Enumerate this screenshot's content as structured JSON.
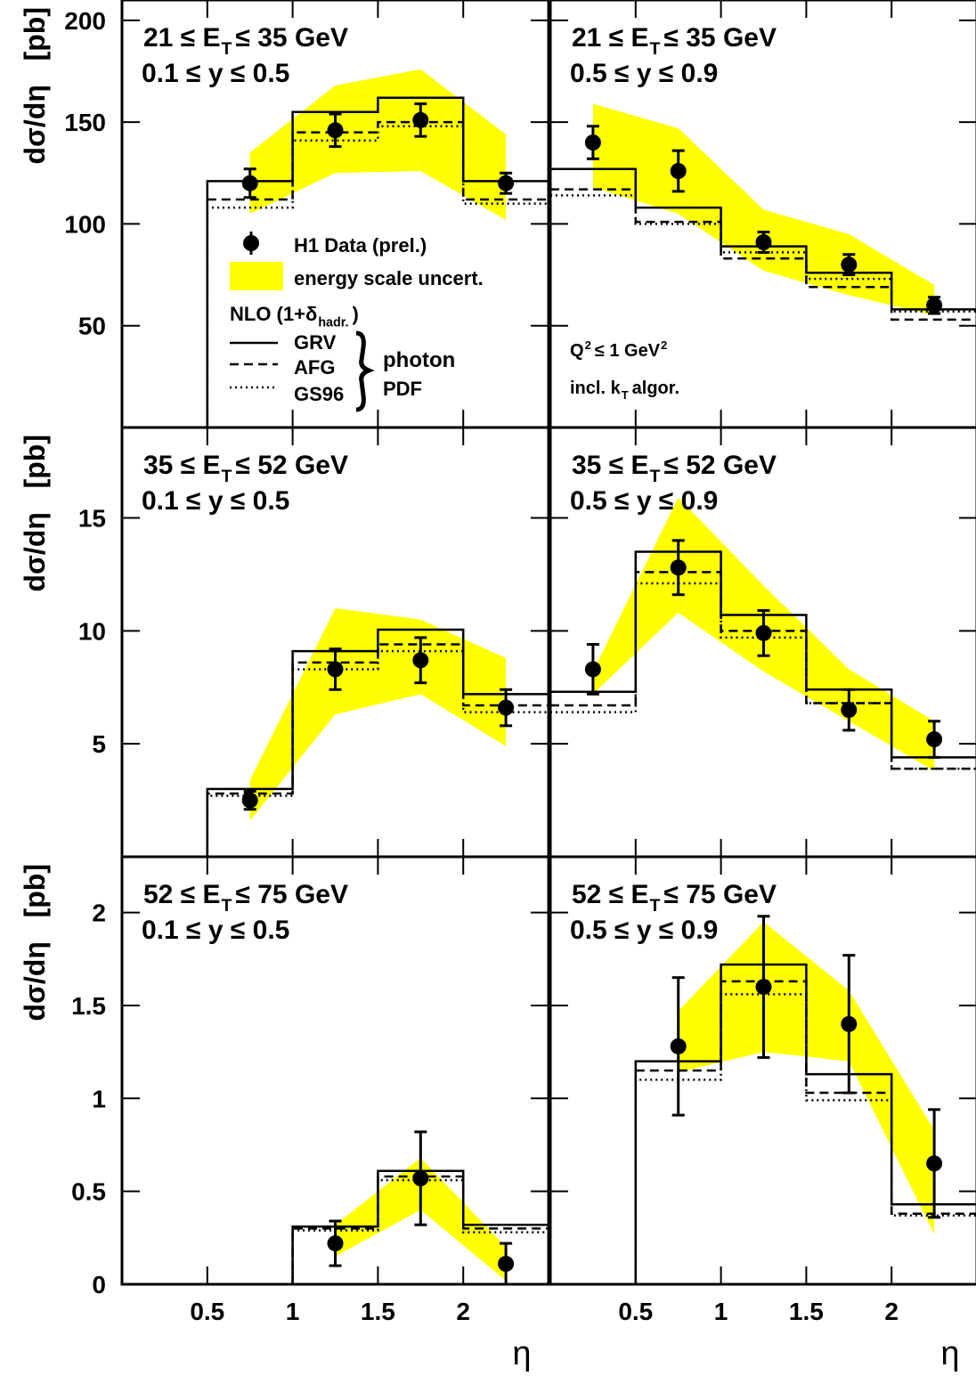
{
  "chart_data": [
    {
      "type": "histogram",
      "title_parts": [
        "21 ≤ E",
        "T",
        "≤ 35 GeV"
      ],
      "subtitle": "0.1 ≤ y ≤ 0.5",
      "y_label": "dσ/dη   [pb]",
      "xlim": [
        0,
        2.5
      ],
      "ylim": [
        0,
        210
      ],
      "yticks": [
        50,
        100,
        150,
        200
      ],
      "bins": [
        0,
        0.5,
        1,
        1.5,
        2,
        2.5
      ],
      "series": [
        {
          "name": "GRV",
          "style": "solid",
          "color": "#000000",
          "values": [
            null,
            121,
            155,
            162,
            121
          ]
        },
        {
          "name": "AFG",
          "style": "dashed",
          "color": "#000000",
          "values": [
            null,
            112,
            145,
            150,
            112
          ]
        },
        {
          "name": "GS96",
          "style": "dotted",
          "color": "#000000",
          "values": [
            null,
            108,
            141,
            148,
            110
          ]
        }
      ],
      "points": {
        "name": "H1 Data (prel.)",
        "color": "#000000",
        "x": [
          0.75,
          1.25,
          1.75,
          2.25
        ],
        "values": [
          120,
          146,
          151,
          120
        ],
        "errors": [
          7,
          8,
          8,
          5
        ]
      },
      "band": {
        "name": "energy scale uncert.",
        "color": "#ffff00",
        "x": [
          0.75,
          1.25,
          1.75,
          2.25
        ],
        "lower": [
          105,
          125,
          126,
          102
        ],
        "upper": [
          135,
          168,
          176,
          144
        ]
      },
      "nlo_label": [
        "NLO (1+δ",
        "hadr.",
        ")"
      ],
      "pdf_label": [
        "photon",
        "PDF"
      ]
    },
    {
      "type": "histogram",
      "title_parts": [
        "21 ≤ E",
        "T",
        "≤ 35 GeV"
      ],
      "subtitle": "0.5 ≤ y ≤ 0.9",
      "xlim": [
        0,
        2.5
      ],
      "ylim": [
        0,
        210
      ],
      "bins": [
        0,
        0.5,
        1,
        1.5,
        2,
        2.5
      ],
      "series": [
        {
          "style": "solid",
          "color": "#000000",
          "values": [
            127,
            108,
            89,
            76,
            58
          ]
        },
        {
          "style": "dashed",
          "color": "#000000",
          "values": [
            117,
            101,
            83,
            69,
            53
          ]
        },
        {
          "style": "dotted",
          "color": "#000000",
          "values": [
            114,
            100,
            86,
            73,
            57
          ]
        }
      ],
      "points": {
        "color": "#000000",
        "x": [
          0.25,
          0.75,
          1.25,
          1.75,
          2.25
        ],
        "values": [
          140,
          126,
          91,
          80,
          60
        ],
        "errors": [
          8,
          10,
          5,
          5,
          4
        ]
      },
      "band": {
        "color": "#ffff00",
        "x": [
          0.25,
          0.75,
          1.25,
          1.75,
          2.25
        ],
        "lower": [
          118,
          105,
          77,
          65,
          55
        ],
        "upper": [
          159,
          147,
          107,
          95,
          70
        ]
      },
      "q2_label": [
        "Q",
        "2",
        "≤ 1 GeV",
        "2"
      ],
      "algo_label": [
        "incl. k",
        "T",
        "algor."
      ]
    },
    {
      "type": "histogram",
      "title_parts": [
        "35 ≤ E",
        "T",
        "≤ 52 GeV"
      ],
      "subtitle": "0.1 ≤ y ≤ 0.5",
      "y_label": "dσ/dη   [pb]",
      "xlim": [
        0,
        2.5
      ],
      "ylim": [
        0,
        19
      ],
      "yticks": [
        5,
        10,
        15
      ],
      "bins": [
        0,
        0.5,
        1,
        1.5,
        2,
        2.5
      ],
      "series": [
        {
          "style": "solid",
          "color": "#000000",
          "values": [
            null,
            3.0,
            9.1,
            10.05,
            7.2
          ]
        },
        {
          "style": "dashed",
          "color": "#000000",
          "values": [
            null,
            2.8,
            8.6,
            9.4,
            6.7
          ]
        },
        {
          "style": "dotted",
          "color": "#000000",
          "values": [
            null,
            2.7,
            8.3,
            9.1,
            6.4
          ]
        }
      ],
      "points": {
        "color": "#000000",
        "x": [
          0.75,
          1.25,
          1.75,
          2.25
        ],
        "values": [
          2.5,
          8.3,
          8.7,
          6.6
        ],
        "errors": [
          0.4,
          0.9,
          1.0,
          0.8
        ]
      },
      "band": {
        "color": "#ffff00",
        "x": [
          0.75,
          1.25,
          1.75,
          2.25
        ],
        "lower": [
          1.6,
          6.3,
          7.2,
          4.9
        ],
        "upper": [
          3.4,
          11.0,
          10.5,
          8.8
        ]
      }
    },
    {
      "type": "histogram",
      "title_parts": [
        "35 ≤ E",
        "T",
        "≤ 52 GeV"
      ],
      "subtitle": "0.5 ≤ y ≤ 0.9",
      "xlim": [
        0,
        2.5
      ],
      "ylim": [
        0,
        19
      ],
      "bins": [
        0,
        0.5,
        1,
        1.5,
        2,
        2.5
      ],
      "series": [
        {
          "style": "solid",
          "color": "#000000",
          "values": [
            7.3,
            13.5,
            10.7,
            7.4,
            4.4
          ]
        },
        {
          "style": "dashed",
          "color": "#000000",
          "values": [
            6.7,
            12.6,
            10.0,
            6.8,
            3.9
          ]
        },
        {
          "style": "dotted",
          "color": "#000000",
          "values": [
            6.4,
            12.1,
            9.7,
            6.8,
            3.9
          ]
        }
      ],
      "points": {
        "color": "#000000",
        "x": [
          0.25,
          0.75,
          1.25,
          1.75,
          2.25
        ],
        "values": [
          8.3,
          12.8,
          9.9,
          6.5,
          5.2
        ],
        "errors": [
          1.1,
          1.2,
          1.0,
          0.9,
          0.8
        ]
      },
      "band": {
        "color": "#ffff00",
        "x": [
          0.25,
          0.75,
          1.25,
          1.75,
          2.25
        ],
        "lower": [
          7.2,
          10.8,
          8.2,
          6.0,
          3.8
        ],
        "upper": [
          8.2,
          15.9,
          12.0,
          8.3,
          6.0
        ]
      }
    },
    {
      "type": "histogram",
      "title_parts": [
        "52 ≤ E",
        "T",
        "≤ 75 GeV"
      ],
      "subtitle": "0.1 ≤ y ≤ 0.5",
      "y_label": "dσ/dη   [pb]",
      "x_label": "η",
      "xlim": [
        0,
        2.5
      ],
      "ylim": [
        0,
        2.3
      ],
      "yticks": [
        0,
        0.5,
        1,
        1.5,
        2
      ],
      "xticks": [
        0.5,
        1,
        1.5,
        2
      ],
      "bins": [
        0,
        0.5,
        1,
        1.5,
        2,
        2.5
      ],
      "series": [
        {
          "style": "solid",
          "color": "#000000",
          "values": [
            null,
            null,
            0.31,
            0.61,
            0.32
          ]
        },
        {
          "style": "dashed",
          "color": "#000000",
          "values": [
            null,
            null,
            0.3,
            0.58,
            0.3
          ]
        },
        {
          "style": "dotted",
          "color": "#000000",
          "values": [
            null,
            null,
            0.29,
            0.56,
            0.28
          ]
        }
      ],
      "points": {
        "color": "#000000",
        "x": [
          1.25,
          1.75,
          2.25
        ],
        "values": [
          0.22,
          0.57,
          0.11
        ],
        "errors": [
          0.12,
          0.25,
          0.11
        ]
      },
      "band": {
        "color": "#ffff00",
        "x": [
          1.25,
          1.75,
          2.25
        ],
        "lower": [
          0.15,
          0.4,
          0.02
        ],
        "upper": [
          0.32,
          0.68,
          0.2
        ]
      }
    },
    {
      "type": "histogram",
      "title_parts": [
        "52 ≤ E",
        "T",
        "≤ 75 GeV"
      ],
      "subtitle": "0.5 ≤ y ≤ 0.9",
      "x_label": "η",
      "xlim": [
        0,
        2.5
      ],
      "ylim": [
        0,
        2.3
      ],
      "xticks": [
        0.5,
        1,
        1.5,
        2
      ],
      "bins": [
        0,
        0.5,
        1,
        1.5,
        2,
        2.5
      ],
      "series": [
        {
          "style": "solid",
          "color": "#000000",
          "values": [
            null,
            1.2,
            1.72,
            1.13,
            0.43
          ]
        },
        {
          "style": "dashed",
          "color": "#000000",
          "values": [
            null,
            1.15,
            1.63,
            1.03,
            0.38
          ]
        },
        {
          "style": "dotted",
          "color": "#000000",
          "values": [
            null,
            1.1,
            1.56,
            0.99,
            0.37
          ]
        }
      ],
      "points": {
        "color": "#000000",
        "x": [
          0.75,
          1.25,
          1.75,
          2.25
        ],
        "values": [
          1.28,
          1.6,
          1.4,
          0.65
        ],
        "errors": [
          0.37,
          0.38,
          0.37,
          0.29
        ]
      },
      "band": {
        "color": "#ffff00",
        "x": [
          0.75,
          1.25,
          1.75,
          2.25
        ],
        "lower": [
          1.14,
          1.25,
          1.2,
          0.27
        ],
        "upper": [
          1.47,
          1.95,
          1.58,
          0.83
        ]
      }
    }
  ]
}
